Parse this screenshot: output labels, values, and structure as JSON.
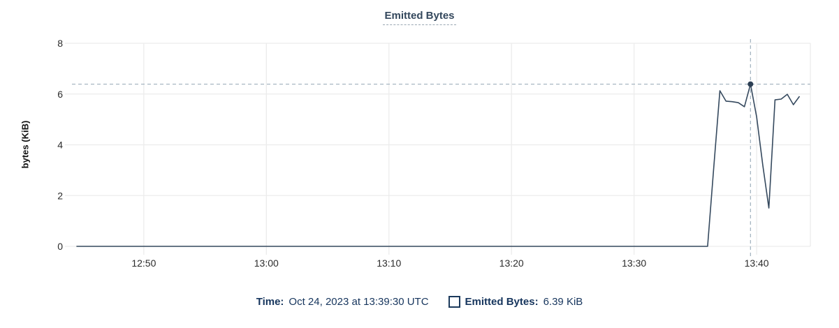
{
  "title": "Emitted Bytes",
  "chart_data": {
    "type": "line",
    "title": "Emitted Bytes",
    "xlabel": "",
    "ylabel": "bytes (KiB)",
    "ylim": [
      0,
      8
    ],
    "y_ticks": [
      0,
      2,
      4,
      6,
      8
    ],
    "x_ticks": [
      "12:50",
      "13:00",
      "13:10",
      "13:20",
      "13:30",
      "13:40"
    ],
    "x_domain": [
      "12:43:58",
      "13:44:23"
    ],
    "grid": true,
    "legend_position": "bottom",
    "series": [
      {
        "name": "Emitted Bytes",
        "unit": "KiB",
        "points": [
          [
            "12:44:30",
            0
          ],
          [
            "13:36:00",
            0
          ],
          [
            "13:36:30",
            3.1
          ],
          [
            "13:37:00",
            6.13
          ],
          [
            "13:37:30",
            5.72
          ],
          [
            "13:38:00",
            5.7
          ],
          [
            "13:38:30",
            5.66
          ],
          [
            "13:39:00",
            5.5
          ],
          [
            "13:39:30",
            6.39
          ],
          [
            "13:40:00",
            5.1
          ],
          [
            "13:40:30",
            3.2
          ],
          [
            "13:41:00",
            1.51
          ],
          [
            "13:41:30",
            5.77
          ],
          [
            "13:42:00",
            5.8
          ],
          [
            "13:42:30",
            5.99
          ],
          [
            "13:43:00",
            5.58
          ],
          [
            "13:43:30",
            5.91
          ]
        ]
      }
    ],
    "highlight_point": {
      "t": "13:39:30",
      "v": 6.39
    }
  },
  "footer": {
    "time_label": "Time:",
    "time_value": "Oct 24, 2023 at 13:39:30 UTC",
    "series_label": "Emitted Bytes:",
    "series_value": "6.39 KiB"
  },
  "colors": {
    "line": "#35495e",
    "highlight_dot": "#2c3f54",
    "grid": "#ececec",
    "tick": "#dcdfe2",
    "crosshair": "#9fb0bd",
    "tick_text": "#2b2b2b",
    "navy_text": "#16355d",
    "title_text": "#33475c"
  }
}
